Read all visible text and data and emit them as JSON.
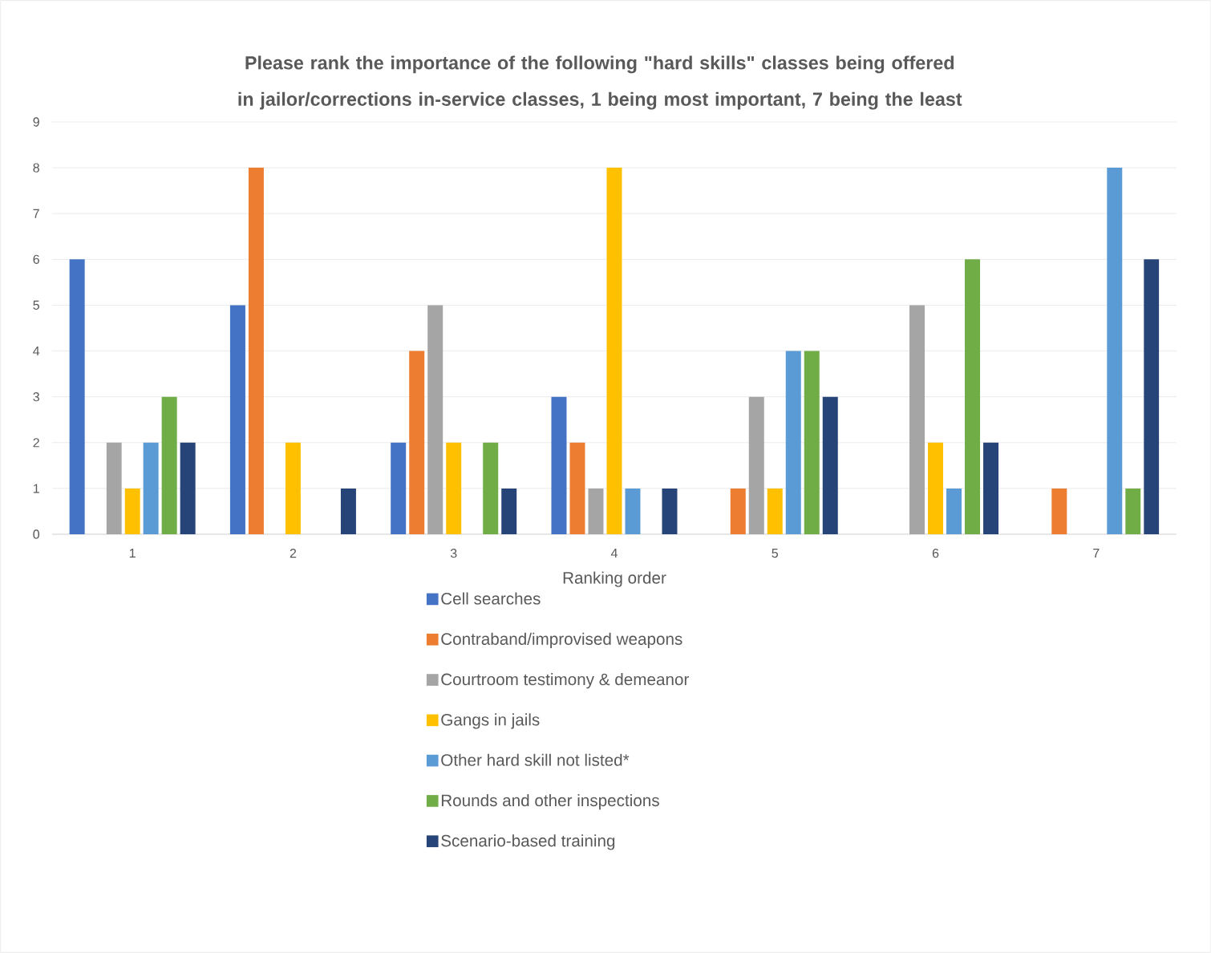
{
  "chart_data": {
    "type": "bar",
    "title": "Please rank the importance of the following \"hard skills\" classes being offered in jailor/corrections in-service classes, 1 being most important, 7 being the least",
    "xlabel": "Ranking order",
    "categories": [
      "1",
      "2",
      "3",
      "4",
      "5",
      "6",
      "7"
    ],
    "series": [
      {
        "name": "Cell searches",
        "color": "#4472c4",
        "values": [
          6,
          5,
          2,
          3,
          0,
          0,
          0
        ]
      },
      {
        "name": "Contraband/improvised weapons",
        "color": "#ed7d31",
        "values": [
          0,
          8,
          4,
          2,
          1,
          0,
          1
        ]
      },
      {
        "name": "Courtroom testimony & demeanor",
        "color": "#a5a5a5",
        "values": [
          2,
          0,
          5,
          1,
          3,
          5,
          0
        ]
      },
      {
        "name": "Gangs in jails",
        "color": "#ffc000",
        "values": [
          1,
          2,
          2,
          8,
          1,
          2,
          0
        ]
      },
      {
        "name": "Other hard skill not listed*",
        "color": "#5b9bd5",
        "values": [
          2,
          0,
          0,
          1,
          4,
          1,
          8
        ]
      },
      {
        "name": "Rounds and other inspections",
        "color": "#70ad47",
        "values": [
          3,
          0,
          2,
          0,
          4,
          6,
          1
        ]
      },
      {
        "name": "Scenario-based training",
        "color": "#264478",
        "values": [
          2,
          1,
          1,
          1,
          3,
          2,
          6
        ]
      }
    ],
    "ylim": [
      0,
      9
    ],
    "yticks": [
      0,
      1,
      2,
      3,
      4,
      5,
      6,
      7,
      8,
      9
    ],
    "grid": "y",
    "legend": "bottom"
  }
}
